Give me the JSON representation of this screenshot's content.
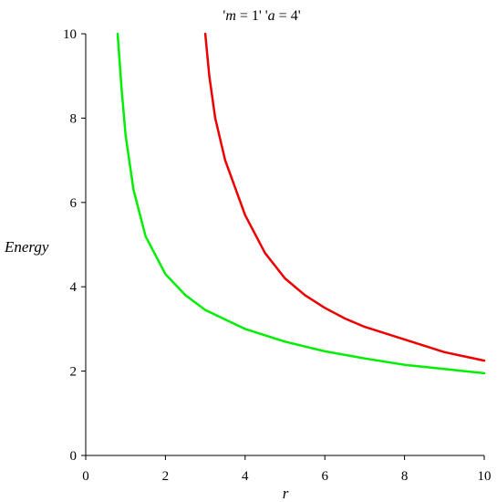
{
  "chart_data": {
    "type": "line",
    "title": {
      "q1": "'",
      "var1": "m",
      "eq1": " = 1' '",
      "var2": "a",
      "eq2": " = 4'"
    },
    "xlabel": "r",
    "ylabel": "Energy",
    "xlim": [
      0,
      10
    ],
    "ylim": [
      0,
      10
    ],
    "x_ticks": [
      0,
      2,
      4,
      6,
      8,
      10
    ],
    "y_ticks": [
      0,
      2,
      4,
      6,
      8,
      10
    ],
    "grid": false,
    "series": [
      {
        "color": "#ee0000",
        "points": [
          [
            3.0,
            10.0
          ],
          [
            3.1,
            9.0
          ],
          [
            3.25,
            8.0
          ],
          [
            3.5,
            7.0
          ],
          [
            4.0,
            5.7
          ],
          [
            4.5,
            4.8
          ],
          [
            5.0,
            4.2
          ],
          [
            5.5,
            3.8
          ],
          [
            6.0,
            3.5
          ],
          [
            6.5,
            3.25
          ],
          [
            7.0,
            3.05
          ],
          [
            8.0,
            2.75
          ],
          [
            9.0,
            2.45
          ],
          [
            10.0,
            2.25
          ]
        ]
      },
      {
        "color": "#00ee00",
        "points": [
          [
            0.8,
            10.0
          ],
          [
            0.9,
            8.7
          ],
          [
            1.0,
            7.6
          ],
          [
            1.2,
            6.3
          ],
          [
            1.5,
            5.2
          ],
          [
            2.0,
            4.3
          ],
          [
            2.5,
            3.8
          ],
          [
            3.0,
            3.45
          ],
          [
            4.0,
            3.0
          ],
          [
            5.0,
            2.7
          ],
          [
            6.0,
            2.47
          ],
          [
            7.0,
            2.3
          ],
          [
            8.0,
            2.15
          ],
          [
            9.0,
            2.05
          ],
          [
            10.0,
            1.95
          ]
        ]
      }
    ]
  }
}
